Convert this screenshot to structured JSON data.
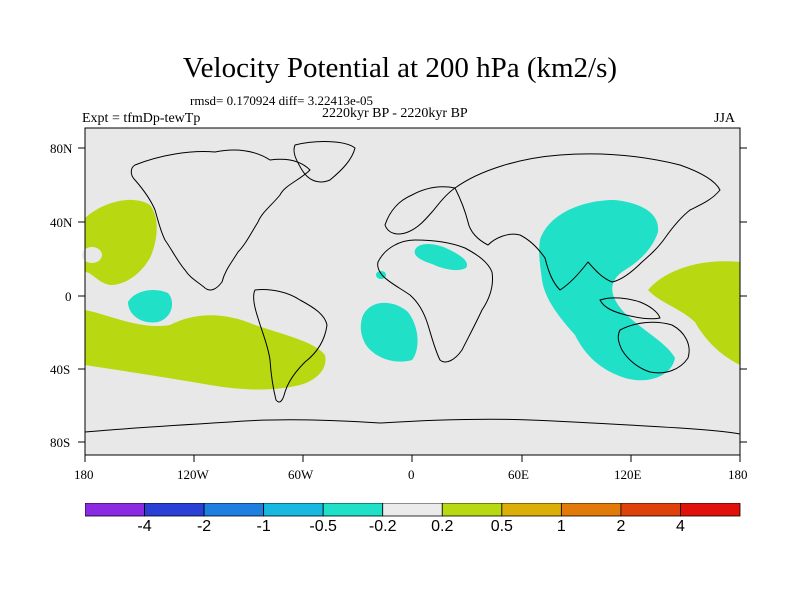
{
  "title": "Velocity Potential at 200 hPa (km2/s)",
  "stats": "rmsd= 0.170924 diff= 3.22413e-05",
  "period": "2220kyr BP - 2220kyr BP",
  "expt": "Expt = tfmDp-tewTp",
  "season": "JJA",
  "lat_labels": [
    "80N",
    "40N",
    "0",
    "40S",
    "80S"
  ],
  "lon_labels": [
    "180",
    "120W",
    "60W",
    "0",
    "60E",
    "120E",
    "180"
  ],
  "colorbar": {
    "colors": [
      "#8a2be2",
      "#2a3fd6",
      "#1e7fe0",
      "#18b8e0",
      "#20e0c8",
      "#ebebeb",
      "#b8d812",
      "#dcae0a",
      "#e27a0a",
      "#e0400a",
      "#e0100a"
    ],
    "labels": [
      "-4",
      "-2",
      "-1",
      "-0.5",
      "-0.2",
      "0.2",
      "0.5",
      "1",
      "2",
      "4"
    ]
  },
  "colors": {
    "background": "#e8e8e8",
    "negative_fill": "#20e0c8",
    "positive_fill": "#b8d812"
  }
}
